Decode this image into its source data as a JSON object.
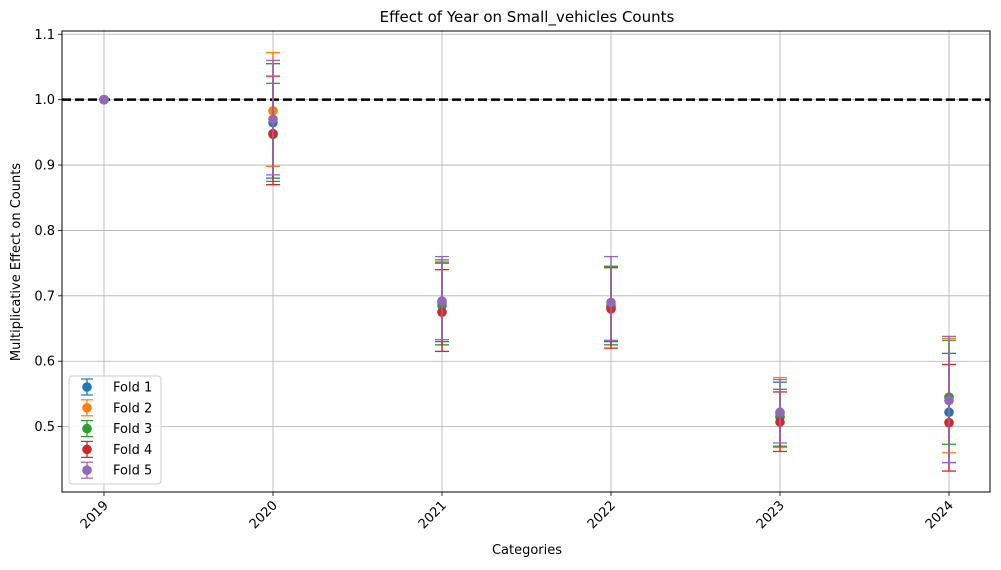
{
  "chart_data": {
    "type": "scatter",
    "title": "Effect of Year on Small_vehicles Counts",
    "xlabel": "Categories",
    "ylabel": "Multiplicative Effect on Counts",
    "categories": [
      "2019",
      "2020",
      "2021",
      "2022",
      "2023",
      "2024"
    ],
    "ylim": [
      0.4,
      1.105
    ],
    "yticks": [
      "0.5",
      "0.6",
      "0.7",
      "0.8",
      "0.9",
      "1.0",
      "1.1"
    ],
    "grid": true,
    "legend_position": "lower-left",
    "reference_line": {
      "y": 1.0,
      "style": "dashed",
      "color": "#000000"
    },
    "series": [
      {
        "name": "Fold 1",
        "color": "#1f77b4",
        "values": [
          1.0,
          0.965,
          0.69,
          0.685,
          0.515,
          0.522
        ],
        "lower": [
          1.0,
          0.88,
          0.63,
          0.63,
          0.47,
          0.445
        ],
        "upper": [
          1.0,
          1.055,
          0.75,
          0.745,
          0.568,
          0.612
        ]
      },
      {
        "name": "Fold 2",
        "color": "#ff7f0e",
        "values": [
          1.0,
          0.983,
          0.69,
          0.685,
          0.52,
          0.545
        ],
        "lower": [
          1.0,
          0.898,
          0.625,
          0.625,
          0.468,
          0.46
        ],
        "upper": [
          1.0,
          1.072,
          0.752,
          0.745,
          0.575,
          0.635
        ]
      },
      {
        "name": "Fold 3",
        "color": "#2ca02c",
        "values": [
          1.0,
          0.947,
          0.685,
          0.682,
          0.515,
          0.545
        ],
        "lower": [
          1.0,
          0.875,
          0.625,
          0.625,
          0.47,
          0.473
        ],
        "upper": [
          1.0,
          1.025,
          0.755,
          0.745,
          0.557,
          0.632
        ]
      },
      {
        "name": "Fold 4",
        "color": "#d62728",
        "values": [
          1.0,
          0.948,
          0.675,
          0.68,
          0.507,
          0.506
        ],
        "lower": [
          1.0,
          0.87,
          0.615,
          0.62,
          0.462,
          0.432
        ],
        "upper": [
          1.0,
          1.036,
          0.74,
          0.743,
          0.553,
          0.595
        ]
      },
      {
        "name": "Fold 5",
        "color": "#9467bd",
        "values": [
          1.0,
          0.97,
          0.692,
          0.69,
          0.522,
          0.54
        ],
        "lower": [
          1.0,
          0.885,
          0.633,
          0.632,
          0.475,
          0.445
        ],
        "upper": [
          1.0,
          1.06,
          0.76,
          0.76,
          0.572,
          0.638
        ]
      }
    ]
  }
}
